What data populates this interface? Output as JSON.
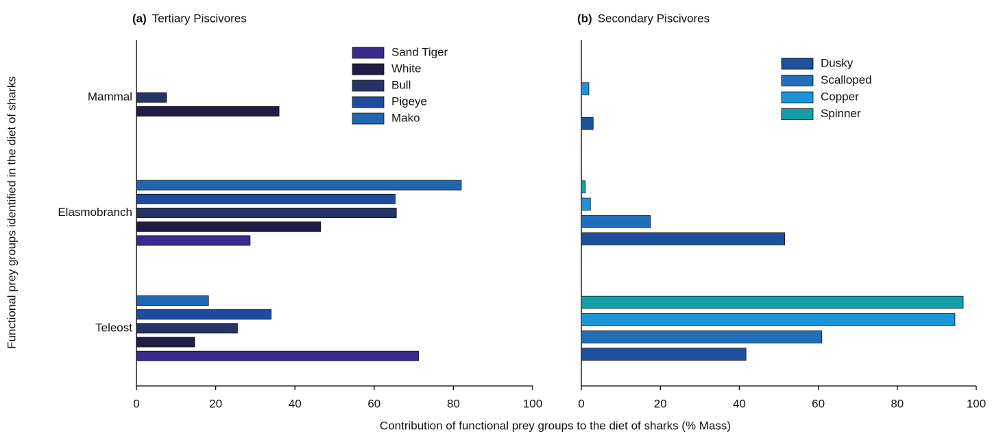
{
  "chart_data": [
    {
      "type": "barh",
      "panel_label": "(a)",
      "title": "Tertiary Piscivores",
      "ylabel": "Functional prey groups identified in the diet of sharks",
      "xlabel": "Contribution of functional prey groups to the diet of sharks (% Mass)",
      "categories": [
        "Mammal",
        "Elasmobranch",
        "Teleost"
      ],
      "series": [
        {
          "name": "Sand Tiger",
          "color": "#3a2a8c",
          "values": [
            null,
            28.7,
            71.2
          ]
        },
        {
          "name": "White",
          "color": "#1f1d45",
          "values": [
            36,
            46.5,
            14.7
          ]
        },
        {
          "name": "Bull",
          "color": "#263366",
          "values": [
            7.6,
            65.6,
            25.5
          ]
        },
        {
          "name": "Pigeye",
          "color": "#1c4ba0",
          "values": [
            null,
            65.3,
            34
          ]
        },
        {
          "name": "Mako",
          "color": "#1f66b0",
          "values": [
            null,
            82,
            18.2
          ]
        }
      ],
      "xlim": [
        0,
        100
      ],
      "xticks": [
        0,
        20,
        40,
        60,
        80,
        100
      ]
    },
    {
      "type": "barh",
      "panel_label": "(b)",
      "title": "Secondary Piscivores",
      "categories": [
        null,
        null,
        null
      ],
      "series": [
        {
          "name": "Dusky",
          "color": "#1d4f9c",
          "values": [
            3,
            51.5,
            41.7
          ]
        },
        {
          "name": "Scalloped",
          "color": "#1f6fba",
          "values": [
            null,
            17.5,
            60.9
          ]
        },
        {
          "name": "Copper",
          "color": "#1a96d6",
          "values": [
            1.9,
            2.3,
            94.6
          ]
        },
        {
          "name": "Spinner",
          "color": "#12a0a8",
          "values": [
            null,
            1,
            96.7
          ]
        }
      ],
      "xlim": [
        0,
        100
      ],
      "xticks": [
        0,
        20,
        40,
        60,
        80,
        100
      ]
    }
  ]
}
